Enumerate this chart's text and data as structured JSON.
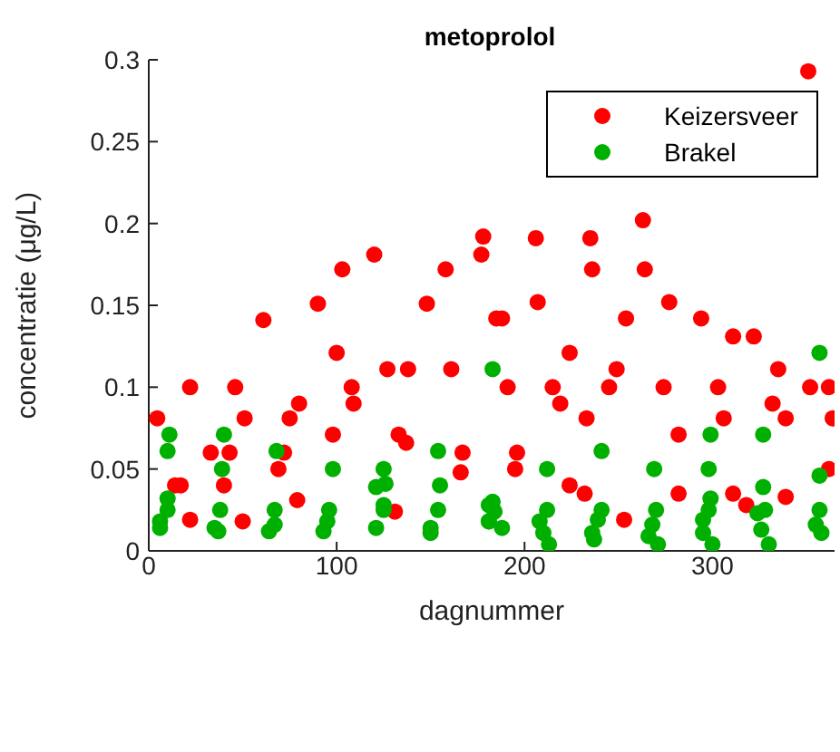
{
  "chart_data": {
    "type": "scatter",
    "title": "metoprolol",
    "xlabel": "dagnummer",
    "ylabel": "concentratie (μg/L)",
    "xlim": [
      0,
      365
    ],
    "xticks": [
      0,
      100,
      200,
      300
    ],
    "ylim": [
      0,
      0.3
    ],
    "yticks": [
      0,
      0.05,
      0.1,
      0.15,
      0.2,
      0.25,
      0.3
    ],
    "legend": "top right",
    "marker": "circle",
    "grid": false,
    "series": [
      {
        "name": "Keizersveer",
        "color": "#ff0000",
        "x": [
          4.5,
          22,
          46,
          61,
          90,
          148,
          185,
          100,
          127,
          138,
          161,
          108,
          109,
          80,
          75,
          51,
          98,
          133,
          137,
          33,
          43,
          72,
          167,
          69,
          166,
          14,
          17,
          40,
          79,
          131,
          22,
          50,
          178,
          177,
          120,
          103,
          158,
          351,
          206,
          235,
          263,
          236,
          264,
          207,
          277,
          188,
          254,
          294,
          311,
          322,
          224,
          249,
          335,
          191,
          215,
          245,
          274,
          303,
          352,
          362,
          219,
          332,
          233,
          306,
          339,
          364,
          282,
          196,
          195,
          362,
          224,
          232,
          282,
          311,
          318,
          339,
          253
        ],
        "values": [
          0.081,
          0.1,
          0.1,
          0.141,
          0.151,
          0.151,
          0.142,
          0.121,
          0.111,
          0.111,
          0.111,
          0.1,
          0.09,
          0.09,
          0.081,
          0.081,
          0.071,
          0.071,
          0.066,
          0.06,
          0.06,
          0.06,
          0.06,
          0.05,
          0.048,
          0.04,
          0.04,
          0.04,
          0.031,
          0.024,
          0.019,
          0.018,
          0.192,
          0.181,
          0.181,
          0.172,
          0.172,
          0.293,
          0.191,
          0.191,
          0.202,
          0.172,
          0.172,
          0.152,
          0.152,
          0.142,
          0.142,
          0.142,
          0.131,
          0.131,
          0.121,
          0.111,
          0.111,
          0.1,
          0.1,
          0.1,
          0.1,
          0.1,
          0.1,
          0.1,
          0.09,
          0.09,
          0.081,
          0.081,
          0.081,
          0.081,
          0.071,
          0.06,
          0.05,
          0.05,
          0.04,
          0.035,
          0.035,
          0.035,
          0.028,
          0.033,
          0.019
        ]
      },
      {
        "name": "Brakel",
        "color": "#00b000",
        "x": [
          11,
          10,
          40,
          68,
          39,
          98,
          125,
          154,
          183,
          10,
          10,
          6,
          6,
          121,
          126,
          155,
          38,
          35,
          37,
          67,
          67,
          64,
          96,
          95,
          93,
          125,
          125,
          121,
          154,
          150,
          150,
          181,
          181,
          357,
          241,
          299,
          327,
          212,
          269,
          298,
          357,
          327,
          183,
          184,
          181,
          188,
          212,
          208,
          210,
          213,
          241,
          239,
          236,
          237,
          270,
          268,
          266,
          271,
          299,
          298,
          295,
          295,
          300,
          328,
          324,
          326,
          330,
          357,
          355,
          358
        ],
        "values": [
          0.071,
          0.061,
          0.071,
          0.061,
          0.05,
          0.05,
          0.05,
          0.061,
          0.111,
          0.032,
          0.025,
          0.018,
          0.014,
          0.039,
          0.041,
          0.04,
          0.025,
          0.014,
          0.012,
          0.025,
          0.016,
          0.012,
          0.025,
          0.018,
          0.012,
          0.028,
          0.025,
          0.014,
          0.025,
          0.014,
          0.011,
          0.028,
          0.018,
          0.121,
          0.061,
          0.071,
          0.071,
          0.05,
          0.05,
          0.05,
          0.046,
          0.039,
          0.03,
          0.024,
          0.018,
          0.014,
          0.025,
          0.018,
          0.011,
          0.004,
          0.025,
          0.019,
          0.011,
          0.007,
          0.025,
          0.016,
          0.009,
          0.004,
          0.032,
          0.025,
          0.019,
          0.011,
          0.004,
          0.025,
          0.023,
          0.013,
          0.004,
          0.025,
          0.016,
          0.011
        ]
      }
    ]
  }
}
